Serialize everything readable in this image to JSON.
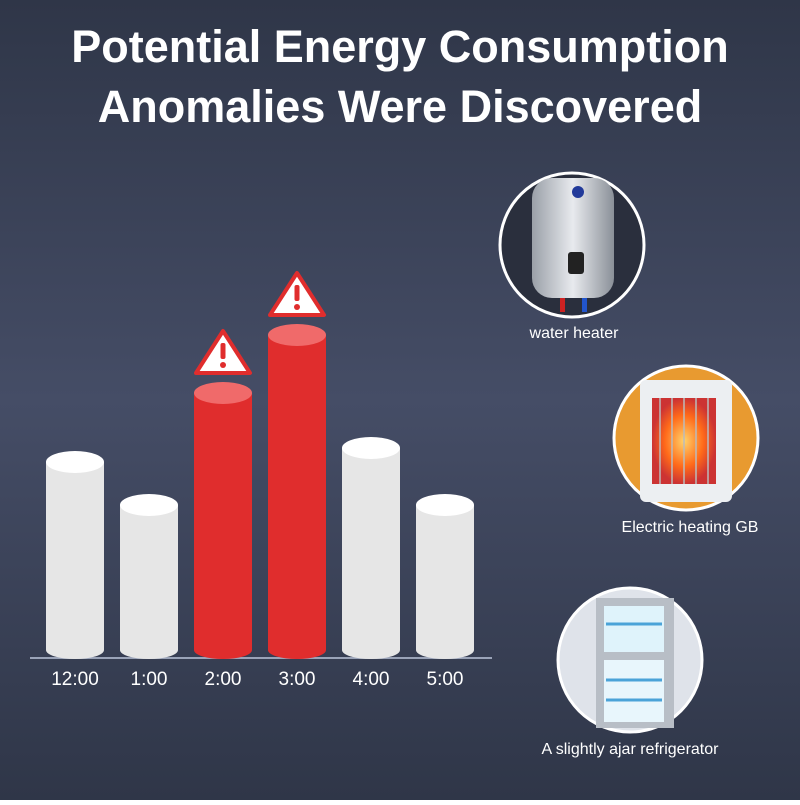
{
  "header": {
    "title_lines": [
      "Potential Energy Consumption",
      "Anomalies Were Discovered"
    ]
  },
  "chart_data": {
    "type": "bar",
    "categories": [
      "12:00",
      "1:00",
      "2:00",
      "3:00",
      "4:00",
      "5:00"
    ],
    "values": [
      188,
      145,
      257,
      315,
      202,
      145
    ],
    "colors": [
      "#e6e6e6",
      "#e6e6e6",
      "#e02d2d",
      "#e02d2d",
      "#e6e6e6",
      "#e6e6e6"
    ],
    "alert_color": "#e02d2d",
    "ylim": [
      0,
      350
    ]
  },
  "devices": [
    {
      "label": "water heater"
    },
    {
      "label": "Electric heating GB"
    },
    {
      "label": "A slightly ajar refrigerator"
    }
  ]
}
